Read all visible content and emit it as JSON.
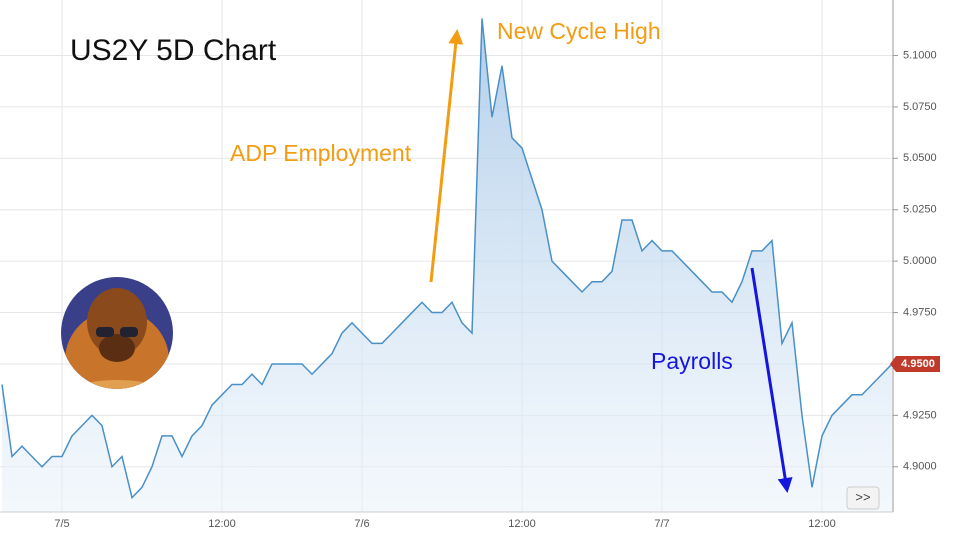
{
  "chart_data": {
    "type": "line",
    "title": "US2Y 5D Chart",
    "annotations": [
      "ADP Employment",
      "New Cycle High",
      "Payrolls"
    ],
    "categories": [
      null,
      null,
      null,
      null,
      null,
      null,
      "7/5",
      null,
      null,
      null,
      null,
      null,
      null,
      null,
      null,
      null,
      null,
      null,
      null,
      null,
      null,
      null,
      "12:00",
      null,
      null,
      null,
      null,
      null,
      null,
      null,
      null,
      null,
      null,
      null,
      null,
      null,
      "7/6",
      null,
      null,
      null,
      null,
      null,
      null,
      null,
      null,
      null,
      null,
      null,
      null,
      null,
      null,
      null,
      "12:00",
      null,
      null,
      null,
      null,
      null,
      null,
      null,
      null,
      null,
      null,
      null,
      null,
      null,
      "7/7",
      null,
      null,
      null,
      null,
      null,
      null,
      null,
      null,
      null,
      null,
      null,
      null,
      null,
      null,
      null,
      "12:00",
      null,
      null,
      null,
      null,
      null,
      null,
      null
    ],
    "series": [
      {
        "color": "#4a90c8",
        "values": [
          4.94,
          4.905,
          4.91,
          4.905,
          4.9,
          4.905,
          4.905,
          4.915,
          4.92,
          4.925,
          4.92,
          4.9,
          4.905,
          4.885,
          4.89,
          4.9,
          4.915,
          4.915,
          4.905,
          4.915,
          4.92,
          4.93,
          4.935,
          4.94,
          4.94,
          4.945,
          4.94,
          4.95,
          4.95,
          4.95,
          4.95,
          4.945,
          4.95,
          4.955,
          4.965,
          4.97,
          4.965,
          4.96,
          4.96,
          4.965,
          4.97,
          4.975,
          4.98,
          4.975,
          4.975,
          4.98,
          4.97,
          4.965,
          5.118,
          5.07,
          5.095,
          5.06,
          5.055,
          5.04,
          5.025,
          5.0,
          4.995,
          4.99,
          4.985,
          4.99,
          4.99,
          4.995,
          5.02,
          5.02,
          5.005,
          5.01,
          5.005,
          5.005,
          5.0,
          4.995,
          4.99,
          4.985,
          4.985,
          4.98,
          4.99,
          5.005,
          5.005,
          5.01,
          4.96,
          4.97,
          4.925,
          4.89,
          4.915,
          4.925,
          4.93,
          4.935,
          4.935,
          4.94,
          4.945,
          4.95
        ]
      }
    ],
    "last_price": {
      "value": 4.95,
      "label": "4.9500"
    },
    "ylim": [
      4.878,
      5.127
    ],
    "yticks": [
      {
        "value": 4.9,
        "label": "4.9000"
      },
      {
        "value": 4.925,
        "label": "4.9250"
      },
      {
        "value": 4.95,
        "label": "4.9500"
      },
      {
        "value": 4.975,
        "label": "4.9750"
      },
      {
        "value": 5.0,
        "label": "5.0000"
      },
      {
        "value": 5.025,
        "label": "5.0250"
      },
      {
        "value": 5.05,
        "label": "5.0500"
      },
      {
        "value": 5.075,
        "label": "5.0750"
      },
      {
        "value": 5.1,
        "label": "5.1000"
      }
    ],
    "grid": true,
    "nav_button": ">>"
  }
}
